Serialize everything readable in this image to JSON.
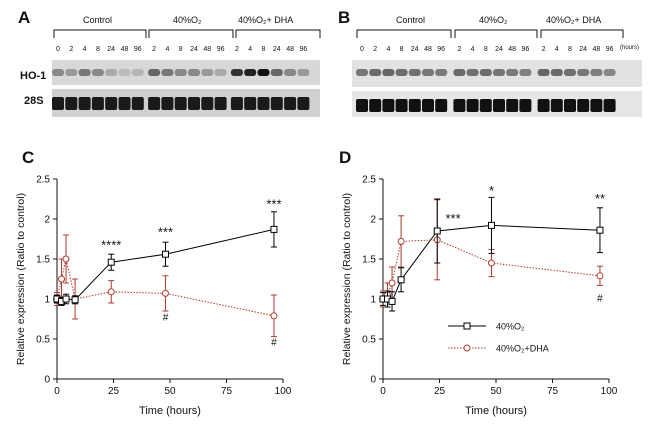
{
  "panels": {
    "A": "A",
    "B": "B",
    "C": "C",
    "D": "D"
  },
  "blot_A": {
    "groups": [
      "Control",
      "40%O₂",
      "40%O₂+ DHA"
    ],
    "lanes": [
      "0",
      "2",
      "4",
      "8",
      "24",
      "48",
      "96",
      "2",
      "4",
      "8",
      "24",
      "48",
      "96",
      "2",
      "4",
      "8",
      "24",
      "48",
      "96"
    ],
    "rows": [
      "HO-1",
      "28S"
    ]
  },
  "blot_B": {
    "groups": [
      "Control",
      "40%O₂",
      "40%O₂+ DHA"
    ],
    "lanes": [
      "0",
      "2",
      "4",
      "8",
      "24",
      "48",
      "96",
      "2",
      "4",
      "8",
      "24",
      "48",
      "96",
      "2",
      "4",
      "8",
      "24",
      "48",
      "96"
    ],
    "hours_label": "(hours)"
  },
  "chart_data": [
    {
      "type": "line",
      "panel": "C",
      "xlabel": "Time (hours)",
      "ylabel": "Relative expression (Ratio to control)",
      "xlim": [
        0,
        100
      ],
      "ylim": [
        0,
        2.5
      ],
      "xticks": [
        0,
        25,
        50,
        75,
        100
      ],
      "yticks": [
        0,
        0.5,
        1,
        1.5,
        2,
        2.5
      ],
      "ytick_labels": [
        "0",
        "0.5",
        "1",
        "1.5",
        "2",
        "2.5"
      ],
      "series": [
        {
          "name": "40%O2",
          "color": "#000000",
          "marker": "square",
          "dash": false,
          "x": [
            0,
            2,
            4,
            8,
            24,
            48,
            96
          ],
          "y": [
            1.0,
            0.97,
            1.0,
            0.99,
            1.46,
            1.56,
            1.87
          ],
          "err": [
            0.05,
            0.05,
            0.06,
            0.05,
            0.1,
            0.15,
            0.22
          ]
        },
        {
          "name": "40%O2+DHA",
          "color": "#b03a2e",
          "marker": "circle",
          "dash": true,
          "x": [
            0,
            2,
            4,
            8,
            24,
            48,
            96
          ],
          "y": [
            1.0,
            1.25,
            1.5,
            1.0,
            1.09,
            1.07,
            0.79
          ],
          "err": [
            0.08,
            0.25,
            0.3,
            0.25,
            0.14,
            0.22,
            0.26
          ]
        }
      ],
      "annotations": [
        {
          "text": "****",
          "x": 24,
          "y": 1.62
        },
        {
          "text": "***",
          "x": 48,
          "y": 1.78
        },
        {
          "text": "***",
          "x": 96,
          "y": 2.13
        },
        {
          "text": "#",
          "x": 48,
          "y": 0.73
        },
        {
          "text": "#",
          "x": 96,
          "y": 0.42
        }
      ]
    },
    {
      "type": "line",
      "panel": "D",
      "xlabel": "Time (hours)",
      "ylabel": "Relative expression (Ratio to control)",
      "xlim": [
        0,
        100
      ],
      "ylim": [
        0,
        2.5
      ],
      "xticks": [
        0,
        25,
        50,
        75,
        100
      ],
      "yticks": [
        0,
        0.5,
        1,
        1.5,
        2,
        2.5
      ],
      "ytick_labels": [
        "0",
        "0.5",
        "1",
        "1.5",
        "2",
        "2.5"
      ],
      "series": [
        {
          "name": "40%O2",
          "color": "#000000",
          "marker": "square",
          "dash": false,
          "x": [
            0,
            2,
            4,
            8,
            24,
            48,
            96
          ],
          "y": [
            1.0,
            1.0,
            0.97,
            1.24,
            1.85,
            1.92,
            1.86
          ],
          "err": [
            0.08,
            0.1,
            0.12,
            0.15,
            0.4,
            0.35,
            0.28
          ]
        },
        {
          "name": "40%O2+DHA",
          "color": "#b03a2e",
          "marker": "circle",
          "dash": true,
          "x": [
            0,
            2,
            4,
            8,
            24,
            48,
            96
          ],
          "y": [
            1.0,
            1.05,
            1.2,
            1.72,
            1.74,
            1.45,
            1.29
          ],
          "err": [
            0.1,
            0.15,
            0.2,
            0.32,
            0.5,
            0.17,
            0.12
          ]
        }
      ],
      "annotations": [
        {
          "text": "***",
          "x": 31,
          "y": 1.95
        },
        {
          "text": "*",
          "x": 48,
          "y": 2.3
        },
        {
          "text": "**",
          "x": 96,
          "y": 2.2
        },
        {
          "text": "#",
          "x": 96,
          "y": 0.97
        }
      ],
      "legend": [
        {
          "label": "40%O₂",
          "series": 0
        },
        {
          "label": "40%O₂+DHA",
          "series": 1
        }
      ]
    }
  ]
}
